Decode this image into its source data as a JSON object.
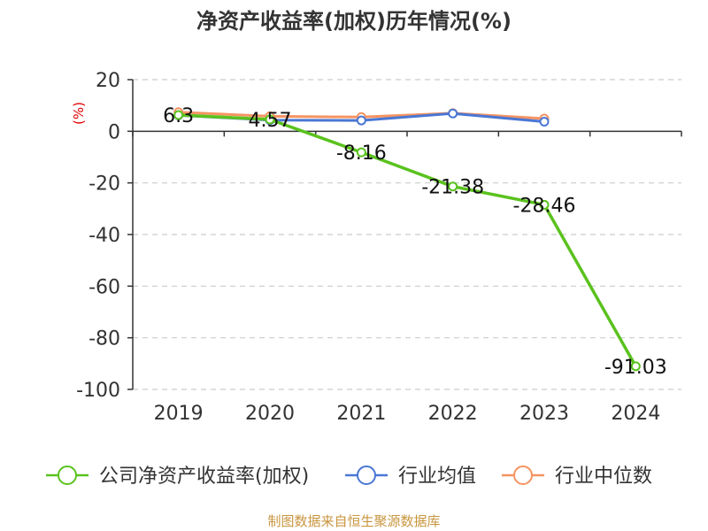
{
  "chart_data": {
    "type": "line",
    "title": "净资产收益率(加权)历年情况(%)",
    "ylabel": "(%)",
    "xlabel": "",
    "categories": [
      "2019",
      "2020",
      "2021",
      "2022",
      "2023",
      "2024"
    ],
    "ylim": [
      -100,
      20
    ],
    "yticks": [
      20,
      0,
      -20,
      -40,
      -60,
      -80,
      -100
    ],
    "grid": true,
    "legend_position": "bottom",
    "series": [
      {
        "name": "公司净资产收益率(加权)",
        "color": "#5ac21e",
        "values": [
          6.3,
          4.57,
          -8.16,
          -21.38,
          -28.46,
          -91.03
        ],
        "labels": [
          "6.3",
          "4.57",
          "-8.16",
          "-21.38",
          "-28.46",
          "-91.03"
        ]
      },
      {
        "name": "行业均值",
        "color": "#4a77d4",
        "values": [
          6.2,
          4.3,
          4.2,
          6.9,
          3.7,
          null
        ]
      },
      {
        "name": "行业中位数",
        "color": "#f59462",
        "values": [
          7.4,
          5.8,
          5.5,
          7.0,
          4.9,
          null
        ]
      }
    ]
  },
  "source": "制图数据来自恒生聚源数据库"
}
